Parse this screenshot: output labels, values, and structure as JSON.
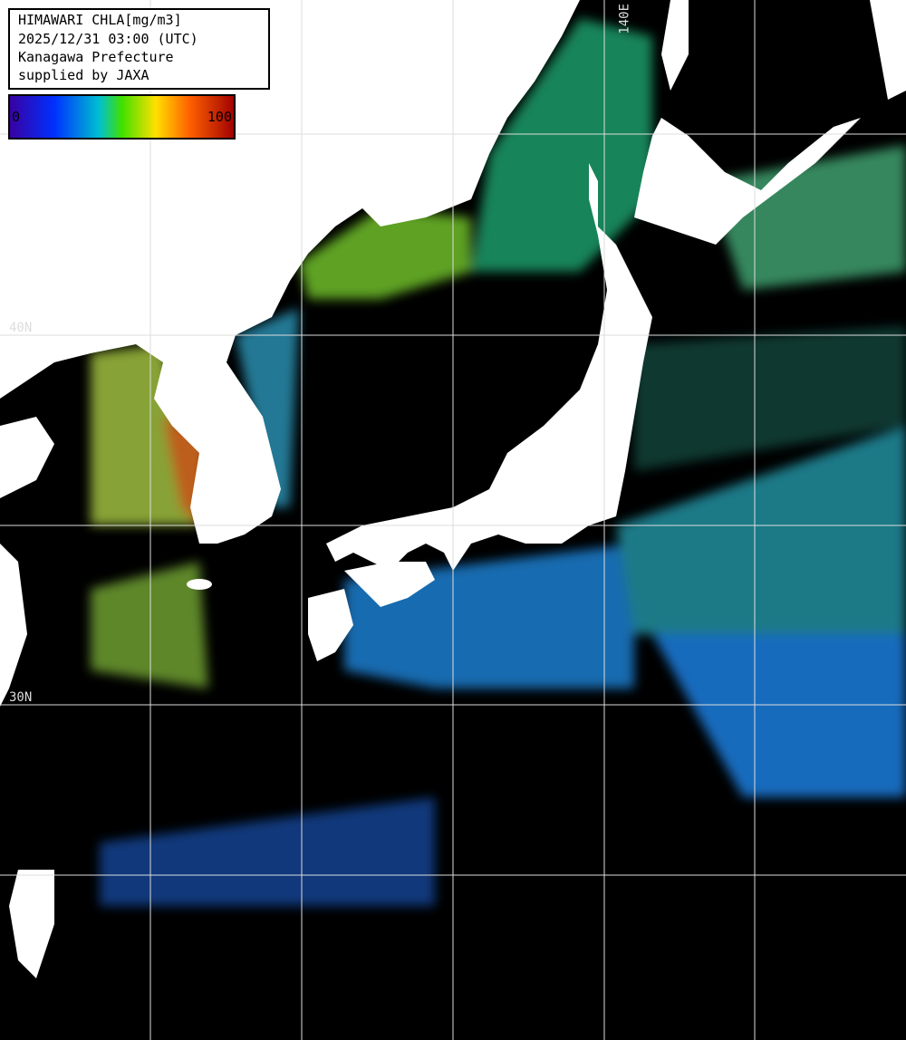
{
  "header": {
    "title": "HIMAWARI CHLA[mg/m3]",
    "datetime": "2025/12/31 03:00 (UTC)",
    "region": "Kanagawa Prefecture",
    "credit": "supplied by JAXA"
  },
  "colorbar": {
    "min": 0,
    "max": 100
  },
  "grid_labels": {
    "lon": "140E",
    "lat_north": "40N",
    "lat_south": "30N"
  }
}
